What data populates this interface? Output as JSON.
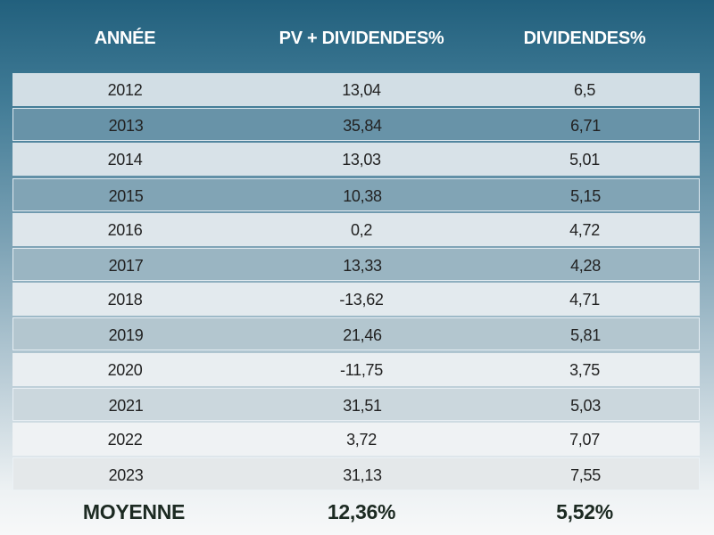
{
  "table": {
    "header": [
      "ANNÉE",
      "PV + DIVIDENDES%",
      "DIVIDENDES%"
    ],
    "rows": [
      [
        "2012",
        "13,04",
        "6,5"
      ],
      [
        "2013",
        "35,84",
        "6,71"
      ],
      [
        "2014",
        "13,03",
        "5,01"
      ],
      [
        "2015",
        "10,38",
        "5,15"
      ],
      [
        "2016",
        "0,2",
        "4,72"
      ],
      [
        "2017",
        "13,33",
        "4,28"
      ],
      [
        "2018",
        "-13,62",
        "4,71"
      ],
      [
        "2019",
        "21,46",
        "5,81"
      ],
      [
        "2020",
        "-11,75",
        "3,75"
      ],
      [
        "2021",
        "31,51",
        "5,03"
      ],
      [
        "2022",
        "3,72",
        "7,07"
      ],
      [
        "2023",
        "31,13",
        "7,55"
      ]
    ],
    "footer": [
      "MOYENNE",
      "12,36%",
      "5,52%"
    ]
  }
}
